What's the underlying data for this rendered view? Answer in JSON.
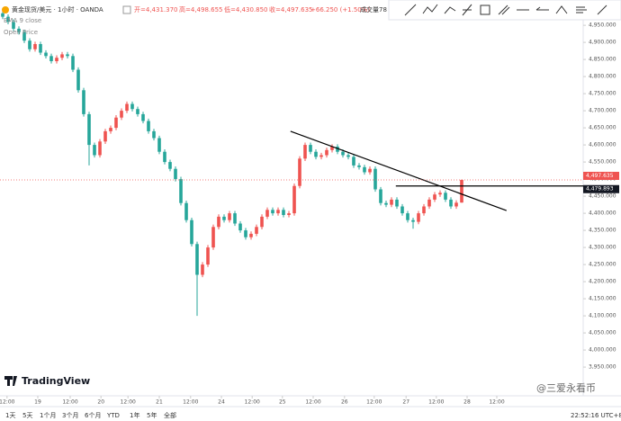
{
  "header": {
    "symbol": "黄金现货/美元 · 1小时 · OANDA",
    "open": "开=4,431.370",
    "high": "高=4,498.655",
    "low": "低=4,430.850",
    "close": "收=4,497.635",
    "change": "+66.250 (+1.50%)",
    "volume": "成交量78",
    "indicator_1": "EMA 9 close",
    "indicator_2": "Open Price"
  },
  "chart_data": {
    "type": "candlestick",
    "up_color": "#ef5350",
    "down_color": "#26a69a",
    "open": [
      4985,
      4975,
      4960,
      4940,
      4930,
      4905,
      4880,
      4895,
      4870,
      4860,
      4845,
      4855,
      4865,
      4860,
      4820,
      4760,
      4690,
      4600,
      4570,
      4610,
      4640,
      4650,
      4680,
      4700,
      4720,
      4705,
      4690,
      4670,
      4640,
      4620,
      4580,
      4550,
      4530,
      4500,
      4430,
      4380,
      4310,
      4220,
      4250,
      4300,
      4360,
      4390,
      4380,
      4400,
      4370,
      4350,
      4330,
      4340,
      4360,
      4390,
      4410,
      4400,
      4410,
      4395,
      4400,
      4480,
      4560,
      4600,
      4580,
      4565,
      4570,
      4585,
      4595,
      4580,
      4570,
      4565,
      4540,
      4535,
      4520,
      4530,
      4470,
      4430,
      4425,
      4440,
      4420,
      4400,
      4380,
      4375,
      4400,
      4420,
      4440,
      4455,
      4460,
      4440,
      4420,
      4431.37
    ],
    "high": [
      4992,
      4982,
      4967,
      4947,
      4937,
      4912,
      4902,
      4902,
      4877,
      4867,
      4862,
      4872,
      4872,
      4867,
      4827,
      4767,
      4697,
      4607,
      4617,
      4647,
      4657,
      4687,
      4707,
      4727,
      4727,
      4712,
      4697,
      4677,
      4647,
      4627,
      4587,
      4557,
      4537,
      4507,
      4437,
      4387,
      4317,
      4257,
      4307,
      4367,
      4397,
      4397,
      4407,
      4407,
      4377,
      4357,
      4347,
      4367,
      4397,
      4417,
      4417,
      4417,
      4417,
      4407,
      4487,
      4567,
      4607,
      4607,
      4587,
      4577,
      4592,
      4602,
      4602,
      4587,
      4577,
      4572,
      4547,
      4542,
      4537,
      4537,
      4477,
      4437,
      4447,
      4447,
      4427,
      4407,
      4387,
      4407,
      4427,
      4447,
      4462,
      4467,
      4467,
      4447,
      4438,
      4498.655
    ],
    "low": [
      4968,
      4953,
      4933,
      4923,
      4898,
      4873,
      4873,
      4863,
      4853,
      4838,
      4838,
      4848,
      4853,
      4813,
      4753,
      4683,
      4540,
      4563,
      4563,
      4603,
      4633,
      4643,
      4673,
      4693,
      4698,
      4683,
      4663,
      4633,
      4613,
      4573,
      4543,
      4523,
      4493,
      4423,
      4373,
      4303,
      4100,
      4213,
      4243,
      4293,
      4353,
      4373,
      4373,
      4363,
      4343,
      4323,
      4323,
      4333,
      4353,
      4383,
      4393,
      4393,
      4388,
      4388,
      4393,
      4473,
      4553,
      4573,
      4558,
      4558,
      4563,
      4578,
      4573,
      4563,
      4558,
      4533,
      4528,
      4513,
      4513,
      4463,
      4423,
      4418,
      4418,
      4413,
      4393,
      4373,
      4355,
      4368,
      4393,
      4413,
      4433,
      4448,
      4433,
      4413,
      4413,
      4430.85
    ],
    "close": [
      4975,
      4960,
      4940,
      4930,
      4905,
      4880,
      4895,
      4870,
      4860,
      4845,
      4855,
      4865,
      4860,
      4820,
      4760,
      4690,
      4600,
      4570,
      4610,
      4640,
      4650,
      4680,
      4700,
      4720,
      4705,
      4690,
      4670,
      4640,
      4620,
      4580,
      4550,
      4530,
      4500,
      4430,
      4380,
      4310,
      4220,
      4250,
      4300,
      4360,
      4390,
      4380,
      4400,
      4370,
      4350,
      4330,
      4340,
      4360,
      4390,
      4410,
      4400,
      4410,
      4395,
      4400,
      4480,
      4560,
      4600,
      4580,
      4565,
      4570,
      4585,
      4595,
      4580,
      4570,
      4565,
      4540,
      4535,
      4520,
      4530,
      4470,
      4430,
      4425,
      4440,
      4420,
      4400,
      4380,
      4375,
      4400,
      4420,
      4440,
      4455,
      4460,
      4440,
      4420,
      4431,
      4497.635
    ],
    "xlim": [
      -0.5,
      107.5
    ],
    "xticks": [
      {
        "value": 0.8,
        "label": "12:00"
      },
      {
        "value": 6.5,
        "label": "19"
      },
      {
        "value": 12.5,
        "label": "12:00"
      },
      {
        "value": 18.2,
        "label": "20"
      },
      {
        "value": 23.2,
        "label": "12:00"
      },
      {
        "value": 29,
        "label": "21"
      },
      {
        "value": 34.8,
        "label": "12:00"
      },
      {
        "value": 40.5,
        "label": "24"
      },
      {
        "value": 46.2,
        "label": "12:00"
      },
      {
        "value": 51.8,
        "label": "25"
      },
      {
        "value": 57.5,
        "label": "12:00"
      },
      {
        "value": 63.3,
        "label": "26"
      },
      {
        "value": 68.8,
        "label": "12:00"
      },
      {
        "value": 74.7,
        "label": "27"
      },
      {
        "value": 80.3,
        "label": "12:00"
      },
      {
        "value": 86,
        "label": "28"
      },
      {
        "value": 91.5,
        "label": "12:00"
      }
    ],
    "ylim": [
      3866,
      5024
    ],
    "yticks": [
      {
        "value": 3950,
        "label": "3,950.000"
      },
      {
        "value": 4000,
        "label": "4,000.000"
      },
      {
        "value": 4050,
        "label": "4,050.000"
      },
      {
        "value": 4100,
        "label": "4,100.000"
      },
      {
        "value": 4150,
        "label": "4,150.000"
      },
      {
        "value": 4200,
        "label": "4,200.000"
      },
      {
        "value": 4250,
        "label": "4,250.000"
      },
      {
        "value": 4300,
        "label": "4,300.000"
      },
      {
        "value": 4350,
        "label": "4,350.000"
      },
      {
        "value": 4400,
        "label": "4,400.000"
      },
      {
        "value": 4450,
        "label": "4,450.000"
      },
      {
        "value": 4500,
        "label": "4,500.000"
      },
      {
        "value": 4550,
        "label": "4,550.000"
      },
      {
        "value": 4600,
        "label": "4,600.000"
      },
      {
        "value": 4650,
        "label": "4,650.000"
      },
      {
        "value": 4700,
        "label": "4,700.000"
      },
      {
        "value": 4750,
        "label": "4,750.000"
      },
      {
        "value": 4800,
        "label": "4,800.000"
      },
      {
        "value": 4850,
        "label": "4,850.000"
      },
      {
        "value": 4900,
        "label": "4,900.000"
      },
      {
        "value": 4950,
        "label": "4,950.000"
      }
    ],
    "last_price": {
      "value": 4497.635,
      "label": "4,497.635"
    },
    "open_price_line": {
      "value": 4479.893,
      "label": "4,479.893",
      "start": 72.8
    },
    "trendline": {
      "x": [
        53.3,
        93.3
      ],
      "y": [
        4640,
        4408
      ]
    }
  },
  "footer": {
    "ranges": [
      "1天",
      "5天",
      "1个月",
      "3个月",
      "6个月",
      "YTD",
      "1年",
      "5年",
      "全部"
    ],
    "clock": "22:52:16 UTC+8",
    "brand": "TradingView",
    "watermark": "@三爱永看币"
  }
}
